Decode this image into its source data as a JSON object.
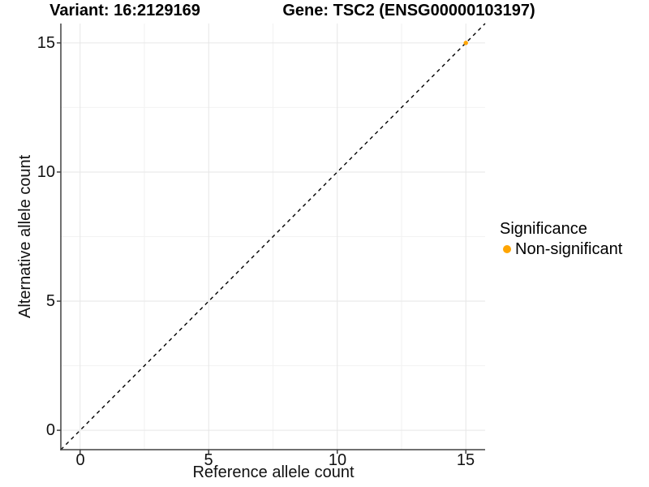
{
  "header": {
    "variant_title": "Variant: 16:2129169",
    "gene_title": "Gene: TSC2 (ENSG00000103197)"
  },
  "chart_data": {
    "type": "scatter",
    "xlabel": "Reference allele count",
    "ylabel": "Alternative allele count",
    "xlim": [
      -0.75,
      15.75
    ],
    "ylim": [
      -0.75,
      15.75
    ],
    "x_ticks": [
      0,
      5,
      10,
      15
    ],
    "y_ticks": [
      0,
      5,
      10,
      15
    ],
    "x_tick_labels": [
      "0",
      "5",
      "10",
      "15"
    ],
    "y_tick_labels": [
      "0",
      "5",
      "10",
      "15"
    ],
    "x_minor_ticks": [
      2.5,
      7.5,
      12.5
    ],
    "y_minor_ticks": [
      2.5,
      7.5,
      12.5
    ],
    "grid": "major+minor",
    "points": [
      {
        "x": 15,
        "y": 15,
        "series": "Non-significant"
      }
    ],
    "reference_line": {
      "kind": "identity y=x",
      "style": "dashed",
      "color": "#000000"
    },
    "legend": {
      "title": "Significance",
      "position": "right",
      "entries": [
        {
          "label": "Non-significant",
          "color": "#FFA500"
        }
      ]
    },
    "colors": {
      "point": "#FFA500",
      "grid_major": "#E6E6E6",
      "grid_minor": "#F2F2F2",
      "axis": "#404040",
      "background": "#FFFFFF"
    }
  }
}
